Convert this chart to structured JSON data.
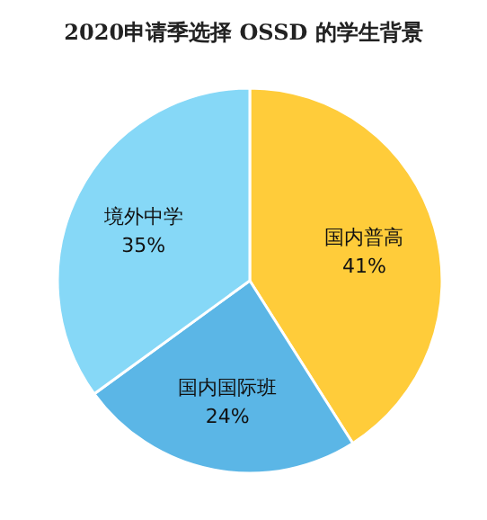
{
  "chart_data": {
    "type": "pie",
    "title": "2020申请季选择 OSSD 的学生背景",
    "categories": [
      "国内普高",
      "国内国际班",
      "境外中学"
    ],
    "values": [
      41,
      24,
      35
    ],
    "colors": [
      "#ffcc3a",
      "#5bb6e6",
      "#86d8f7"
    ],
    "value_labels": [
      "41%",
      "24%",
      "35%"
    ]
  }
}
